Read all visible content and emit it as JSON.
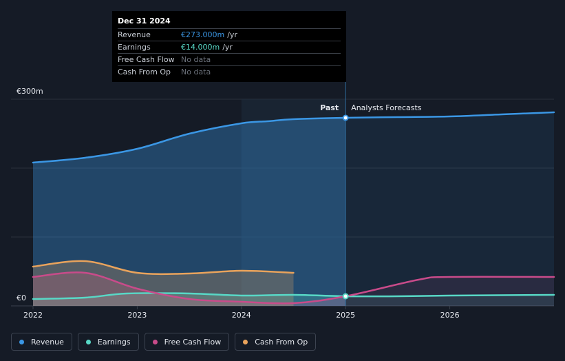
{
  "chart_data": {
    "type": "area",
    "y_axis": {
      "top_label": "€300m",
      "bottom_label": "€0",
      "ylim": [
        0,
        300
      ]
    },
    "x_axis": {
      "ticks": [
        "2022",
        "2023",
        "2024",
        "2025",
        "2026"
      ],
      "xlim": [
        2022,
        2027.0
      ]
    },
    "divider": {
      "x": 2025.0,
      "past_label": "Past",
      "forecast_label": "Analysts Forecasts"
    },
    "series": [
      {
        "name": "Revenue",
        "color": "#3b97e5",
        "points": [
          [
            2022.0,
            208
          ],
          [
            2022.5,
            215
          ],
          [
            2023.0,
            228
          ],
          [
            2023.5,
            250
          ],
          [
            2024.0,
            265
          ],
          [
            2024.25,
            268
          ],
          [
            2024.5,
            271
          ],
          [
            2025.0,
            273
          ],
          [
            2025.5,
            274
          ],
          [
            2026.0,
            275
          ],
          [
            2026.5,
            278
          ],
          [
            2027.0,
            281
          ]
        ]
      },
      {
        "name": "Earnings",
        "color": "#58d8c6",
        "points": [
          [
            2022.0,
            10
          ],
          [
            2022.5,
            12
          ],
          [
            2022.9,
            18
          ],
          [
            2023.5,
            18
          ],
          [
            2024.0,
            15
          ],
          [
            2024.5,
            16
          ],
          [
            2025.0,
            14
          ],
          [
            2025.5,
            14
          ],
          [
            2026.0,
            15
          ],
          [
            2027.0,
            16
          ]
        ]
      },
      {
        "name": "Free Cash Flow",
        "color": "#c94b8a",
        "points": [
          [
            2022.0,
            42
          ],
          [
            2022.5,
            48
          ],
          [
            2023.0,
            25
          ],
          [
            2023.5,
            10
          ],
          [
            2024.0,
            6
          ],
          [
            2024.5,
            4
          ],
          [
            2025.0,
            14
          ],
          [
            2025.7,
            38
          ],
          [
            2026.0,
            42
          ],
          [
            2027.0,
            42
          ]
        ]
      },
      {
        "name": "Cash From Op",
        "color": "#e9a35c",
        "points": [
          [
            2022.0,
            57
          ],
          [
            2022.5,
            65
          ],
          [
            2023.0,
            48
          ],
          [
            2023.5,
            47
          ],
          [
            2024.0,
            51
          ],
          [
            2024.5,
            48
          ]
        ]
      }
    ]
  },
  "tooltip": {
    "date": "Dec 31 2024",
    "rows": [
      {
        "label": "Revenue",
        "value": "€273.000m",
        "unit": "/yr",
        "color": "#3b97e5"
      },
      {
        "label": "Earnings",
        "value": "€14.000m",
        "unit": "/yr",
        "color": "#58d8c6"
      },
      {
        "label": "Free Cash Flow",
        "value": "No data",
        "unit": "",
        "color": "#6b717b"
      },
      {
        "label": "Cash From Op",
        "value": "No data",
        "unit": "",
        "color": "#6b717b"
      }
    ]
  },
  "legend": [
    {
      "label": "Revenue",
      "color": "#3b97e5"
    },
    {
      "label": "Earnings",
      "color": "#58d8c6"
    },
    {
      "label": "Free Cash Flow",
      "color": "#c94b8a"
    },
    {
      "label": "Cash From Op",
      "color": "#e9a35c"
    }
  ]
}
